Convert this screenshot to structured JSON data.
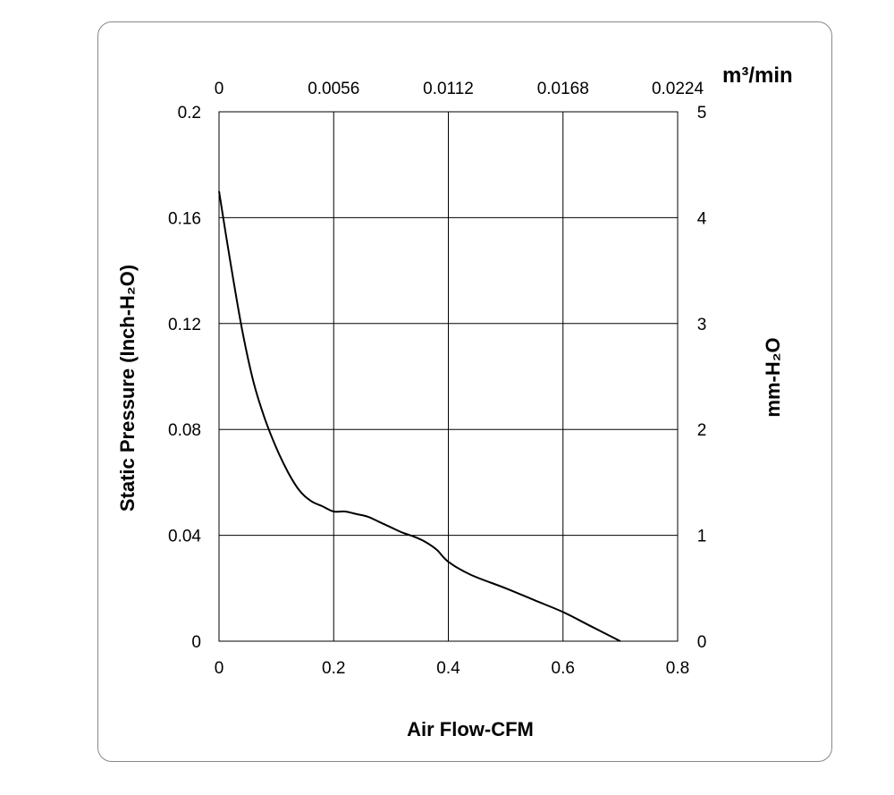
{
  "chart_data": {
    "type": "line",
    "xlabel": "Air Flow-CFM",
    "ylabel": "Static Pressure (Inch-H₂O)",
    "x2label": "m³/min",
    "y2label": "mm-H₂O",
    "xlim": [
      0,
      0.8
    ],
    "ylim": [
      0,
      0.2
    ],
    "x2lim": [
      0,
      0.0224
    ],
    "y2lim": [
      0,
      5
    ],
    "grid": true,
    "x_ticks": [
      "0",
      "0.2",
      "0.4",
      "0.6",
      "0.8"
    ],
    "y_ticks": [
      "0",
      "0.04",
      "0.08",
      "0.12",
      "0.16",
      "0.2"
    ],
    "x2_ticks": [
      "0",
      "0.0056",
      "0.0112",
      "0.0168",
      "0.0224"
    ],
    "y2_ticks": [
      "0",
      "1",
      "2",
      "3",
      "4",
      "5"
    ],
    "series": [
      {
        "x": [
          0,
          0.02,
          0.04,
          0.06,
          0.08,
          0.1,
          0.12,
          0.14,
          0.16,
          0.18,
          0.2,
          0.22,
          0.24,
          0.26,
          0.28,
          0.3,
          0.32,
          0.34,
          0.36,
          0.38,
          0.4,
          0.44,
          0.5,
          0.55,
          0.6,
          0.65,
          0.7
        ],
        "y": [
          0.17,
          0.143,
          0.118,
          0.098,
          0.084,
          0.073,
          0.064,
          0.057,
          0.053,
          0.051,
          0.049,
          0.049,
          0.048,
          0.047,
          0.045,
          0.043,
          0.041,
          0.0395,
          0.0375,
          0.0345,
          0.03,
          0.025,
          0.02,
          0.0155,
          0.011,
          0.0055,
          0
        ]
      }
    ]
  },
  "colors": {
    "line": "#000000",
    "grid": "#000000",
    "frame": "#888888"
  }
}
